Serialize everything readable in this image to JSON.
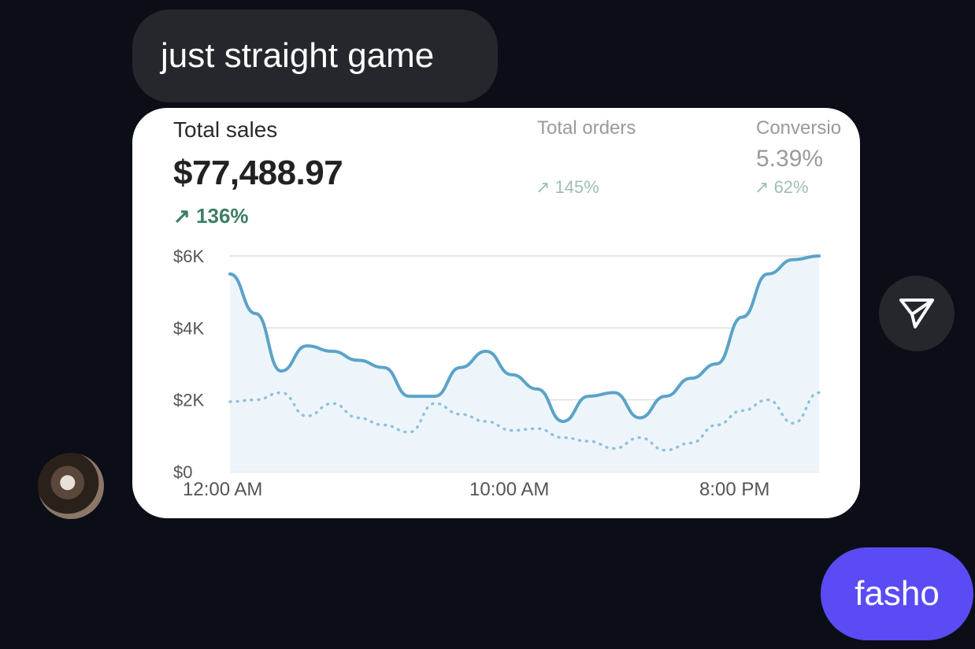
{
  "messages": {
    "incoming_text": "just straight game",
    "outgoing_text": "fasho"
  },
  "screenshot": {
    "total_sales": {
      "label": "Total sales",
      "value": "$77,488.97",
      "change": "136%"
    },
    "total_orders": {
      "label": "Total orders",
      "change": "145%"
    },
    "conversion": {
      "label": "Conversio",
      "value": "5.39%",
      "change": "62%"
    }
  },
  "chart_data": {
    "type": "line",
    "x_tick_labels": [
      "12:00 AM",
      "10:00 AM",
      "8:00 PM"
    ],
    "y_tick_labels": [
      "$0",
      "$2K",
      "$4K",
      "$6K"
    ],
    "ylim": [
      0,
      6000
    ],
    "grid": true,
    "series": [
      {
        "style": "solid-area",
        "color": "#5ba3c8",
        "values": [
          5500,
          4400,
          2800,
          3500,
          3350,
          3100,
          2900,
          2100,
          2100,
          2900,
          3350,
          2700,
          2300,
          1400,
          2100,
          2200,
          1500,
          2100,
          2600,
          3000,
          4300,
          5500,
          5900,
          6000
        ]
      },
      {
        "style": "dotted",
        "color": "#8ec3dc",
        "values": [
          1950,
          2000,
          2200,
          1550,
          1900,
          1500,
          1300,
          1100,
          1900,
          1600,
          1400,
          1150,
          1200,
          950,
          850,
          650,
          950,
          600,
          800,
          1300,
          1700,
          2000,
          1350,
          2200
        ]
      }
    ]
  },
  "icons": {
    "share": "send-arrow-icon"
  },
  "colors": {
    "background": "#0b0e16",
    "incoming_bubble": "#25272c",
    "outgoing_bubble": "#5b4bf5",
    "line": "#5ba3c8",
    "positive_change": "#3d7f64"
  }
}
